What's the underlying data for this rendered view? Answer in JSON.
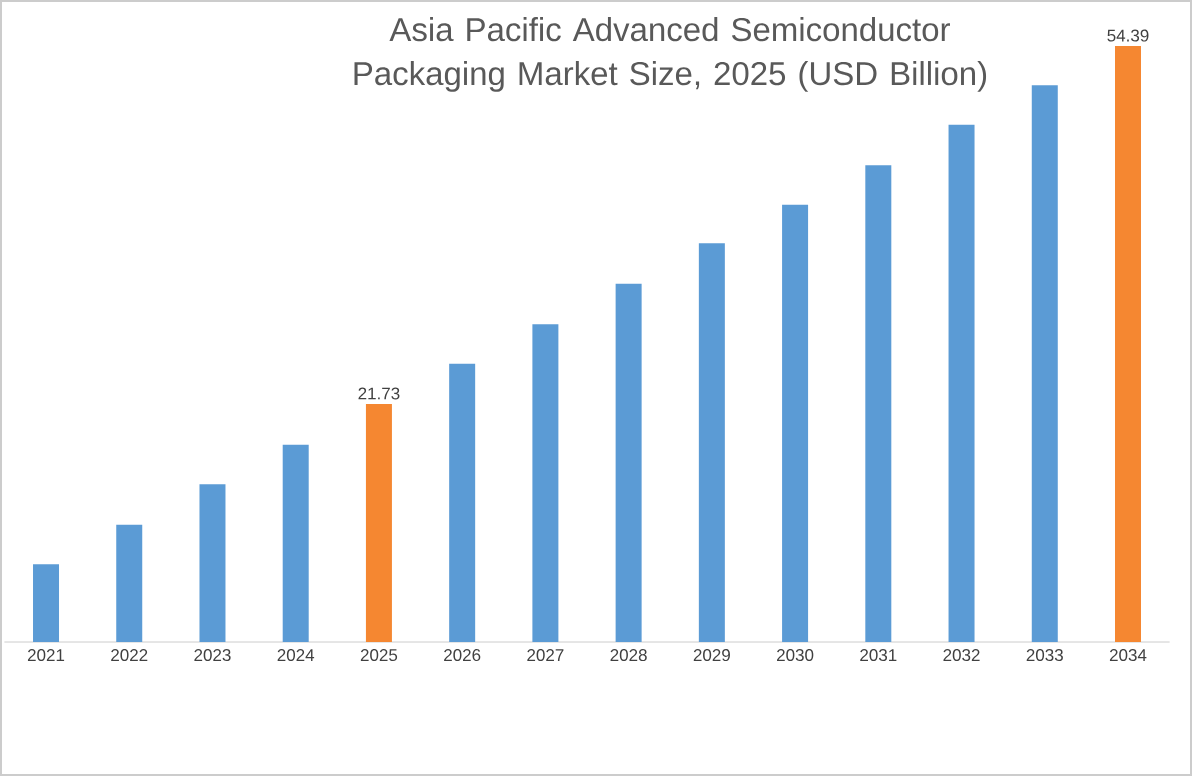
{
  "chart_data": {
    "type": "bar",
    "title": "Asia Pacific Advanced Semiconductor Packaging Market Size, 2025 (USD Billion)",
    "categories": [
      "2021",
      "2022",
      "2023",
      "2024",
      "2025",
      "2026",
      "2027",
      "2028",
      "2029",
      "2030",
      "2031",
      "2032",
      "2033",
      "2034"
    ],
    "values": [
      7.1,
      10.7,
      14.4,
      18.0,
      21.73,
      25.4,
      29.0,
      32.7,
      36.4,
      39.9,
      43.5,
      47.2,
      50.8,
      54.39
    ],
    "colors": [
      "#5b9bd5",
      "#5b9bd5",
      "#5b9bd5",
      "#5b9bd5",
      "#f58731",
      "#5b9bd5",
      "#5b9bd5",
      "#5b9bd5",
      "#5b9bd5",
      "#5b9bd5",
      "#5b9bd5",
      "#5b9bd5",
      "#5b9bd5",
      "#f58731"
    ],
    "value_labels": [
      null,
      null,
      null,
      null,
      "21.73",
      null,
      null,
      null,
      null,
      null,
      null,
      null,
      null,
      "54.39"
    ],
    "tick_labels": "x"
  }
}
